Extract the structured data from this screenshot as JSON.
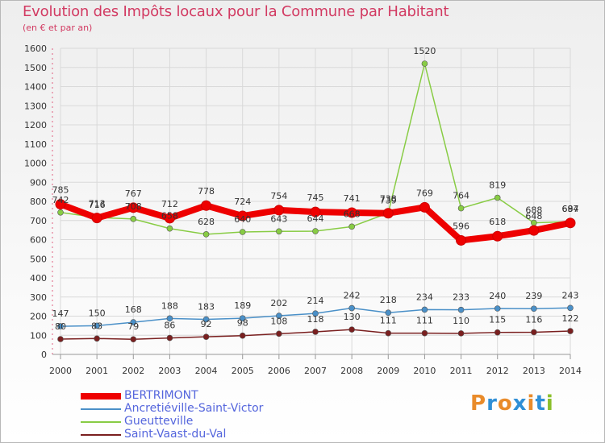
{
  "title": "Evolution des Impôts locaux pour la Commune par Habitant",
  "subtitle": "(en € et par an)",
  "logo": {
    "text": "Proxiti",
    "letters": [
      "P",
      "r",
      "o",
      "x",
      "i",
      "t",
      "i"
    ],
    "colors": [
      "#e98b2a",
      "#2f8fd6",
      "#e98b2a",
      "#2f8fd6",
      "#e98b2a",
      "#2f8fd6",
      "#8abf2a"
    ]
  },
  "chart_data": {
    "type": "line",
    "title": "Evolution des Impôts locaux pour la Commune par Habitant",
    "subtitle": "(en € et par an)",
    "xlabel": "",
    "ylabel": "",
    "ylim": [
      0,
      1600
    ],
    "yticks": [
      0,
      100,
      200,
      300,
      400,
      500,
      600,
      700,
      800,
      900,
      1000,
      1100,
      1200,
      1300,
      1400,
      1500,
      1600
    ],
    "x": [
      "2000",
      "2001",
      "2002",
      "2003",
      "2004",
      "2005",
      "2006",
      "2007",
      "2008",
      "2009",
      "2010",
      "2011",
      "2012",
      "2013",
      "2014"
    ],
    "grid": true,
    "legend_position": "bottom-left",
    "series": [
      {
        "name": "BERTRIMONT",
        "color": "#ee0000",
        "values": [
          785,
          713,
          767,
          712,
          778,
          724,
          754,
          745,
          741,
          738,
          769,
          596,
          618,
          648,
          687
        ]
      },
      {
        "name": "Ancretiéville-Saint-Victor",
        "color": "#4a90c8",
        "values": [
          147,
          150,
          168,
          188,
          183,
          189,
          202,
          214,
          242,
          218,
          234,
          233,
          240,
          239,
          243
        ]
      },
      {
        "name": "Gueutteville",
        "color": "#88cc44",
        "values": [
          742,
          716,
          708,
          658,
          628,
          640,
          643,
          644,
          668,
          739,
          1520,
          764,
          819,
          688,
          694
        ]
      },
      {
        "name": "Saint-Vaast-du-Val",
        "color": "#7a1f1f",
        "values": [
          80,
          83,
          79,
          86,
          92,
          98,
          108,
          118,
          130,
          111,
          111,
          110,
          115,
          116,
          122
        ]
      }
    ]
  }
}
